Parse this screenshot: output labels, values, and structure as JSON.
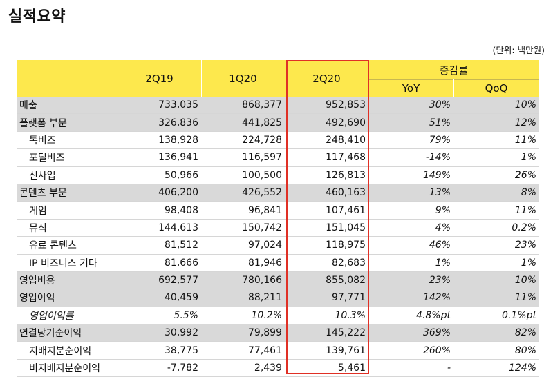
{
  "title": "실적요약",
  "unit_note": "(단위: 백만원)",
  "header": {
    "periods": [
      "2Q19",
      "1Q20",
      "2Q20"
    ],
    "change_group": "증감률",
    "change_cols": [
      "YoY",
      "QoQ"
    ]
  },
  "highlight_color": "#e03025",
  "header_color": "#fde84d",
  "rows": [
    {
      "label": "매출",
      "v1": "733,035",
      "v2": "868,377",
      "v3": "952,853",
      "yoy": "30%",
      "qoq": "10%"
    },
    {
      "label": "플랫폼 부문",
      "v1": "326,836",
      "v2": "441,825",
      "v3": "492,690",
      "yoy": "51%",
      "qoq": "12%"
    },
    {
      "label": "톡비즈",
      "v1": "138,928",
      "v2": "224,728",
      "v3": "248,410",
      "yoy": "79%",
      "qoq": "11%"
    },
    {
      "label": "포털비즈",
      "v1": "136,941",
      "v2": "116,597",
      "v3": "117,468",
      "yoy": "-14%",
      "qoq": "1%"
    },
    {
      "label": "신사업",
      "v1": "50,966",
      "v2": "100,500",
      "v3": "126,813",
      "yoy": "149%",
      "qoq": "26%"
    },
    {
      "label": "콘텐츠 부문",
      "v1": "406,200",
      "v2": "426,552",
      "v3": "460,163",
      "yoy": "13%",
      "qoq": "8%"
    },
    {
      "label": "게임",
      "v1": "98,408",
      "v2": "96,841",
      "v3": "107,461",
      "yoy": "9%",
      "qoq": "11%"
    },
    {
      "label": "뮤직",
      "v1": "144,613",
      "v2": "150,742",
      "v3": "151,045",
      "yoy": "4%",
      "qoq": "0.2%"
    },
    {
      "label": "유료 콘텐츠",
      "v1": "81,512",
      "v2": "97,024",
      "v3": "118,975",
      "yoy": "46%",
      "qoq": "23%"
    },
    {
      "label": "IP 비즈니스 기타",
      "v1": "81,666",
      "v2": "81,946",
      "v3": "82,683",
      "yoy": "1%",
      "qoq": "1%"
    },
    {
      "label": "영업비용",
      "v1": "692,577",
      "v2": "780,166",
      "v3": "855,082",
      "yoy": "23%",
      "qoq": "10%"
    },
    {
      "label": "영업이익",
      "v1": "40,459",
      "v2": "88,211",
      "v3": "97,771",
      "yoy": "142%",
      "qoq": "11%"
    },
    {
      "label": "영업이익률",
      "v1": "5.5%",
      "v2": "10.2%",
      "v3": "10.3%",
      "yoy": "4.8%pt",
      "qoq": "0.1%pt"
    },
    {
      "label": "연결당기순이익",
      "v1": "30,992",
      "v2": "79,899",
      "v3": "145,222",
      "yoy": "369%",
      "qoq": "82%"
    },
    {
      "label": "지배지분순이익",
      "v1": "38,775",
      "v2": "77,461",
      "v3": "139,761",
      "yoy": "260%",
      "qoq": "80%"
    },
    {
      "label": "비지배지분순이익",
      "v1": "-7,782",
      "v2": "2,439",
      "v3": "5,461",
      "yoy": "-",
      "qoq": "124%"
    }
  ]
}
